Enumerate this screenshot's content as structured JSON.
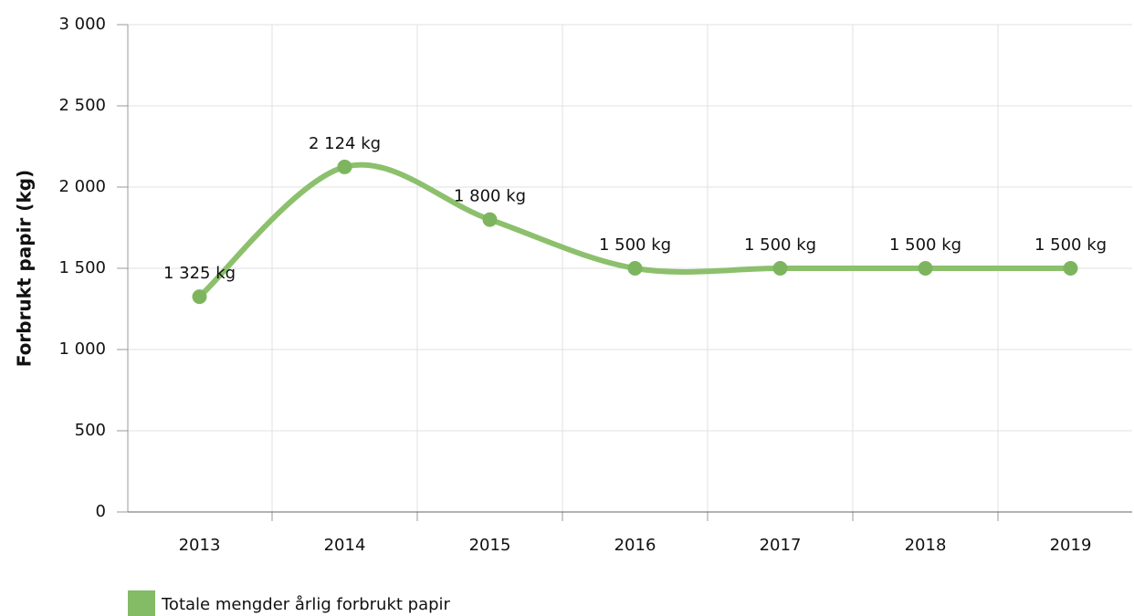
{
  "chart_data": {
    "type": "line",
    "smooth": true,
    "y_label": "Forbrukt papir (kg)",
    "categories": [
      "2013",
      "2014",
      "2015",
      "2016",
      "2017",
      "2018",
      "2019"
    ],
    "series": [
      {
        "name": "Totale mengder årlig forbrukt papir",
        "color": "#8cc06c",
        "values": [
          1325,
          2124,
          1800,
          1500,
          1500,
          1500,
          1500
        ],
        "value_labels": [
          "1 325 kg",
          "2 124 kg",
          "1 800 kg",
          "1 500 kg",
          "1 500 kg",
          "1 500 kg",
          "1 500 kg"
        ]
      }
    ],
    "ylim": [
      0,
      3000
    ],
    "yticks": [
      0,
      500,
      {
        "value": 1000,
        "label": "1 000"
      },
      {
        "value": 1500,
        "label": "1 500"
      },
      {
        "value": 2000,
        "label": "2 000"
      },
      {
        "value": 2500,
        "label": "2 500"
      },
      {
        "value": 3000,
        "label": "3 000"
      }
    ],
    "grid": true,
    "legend": "bottom-left"
  }
}
